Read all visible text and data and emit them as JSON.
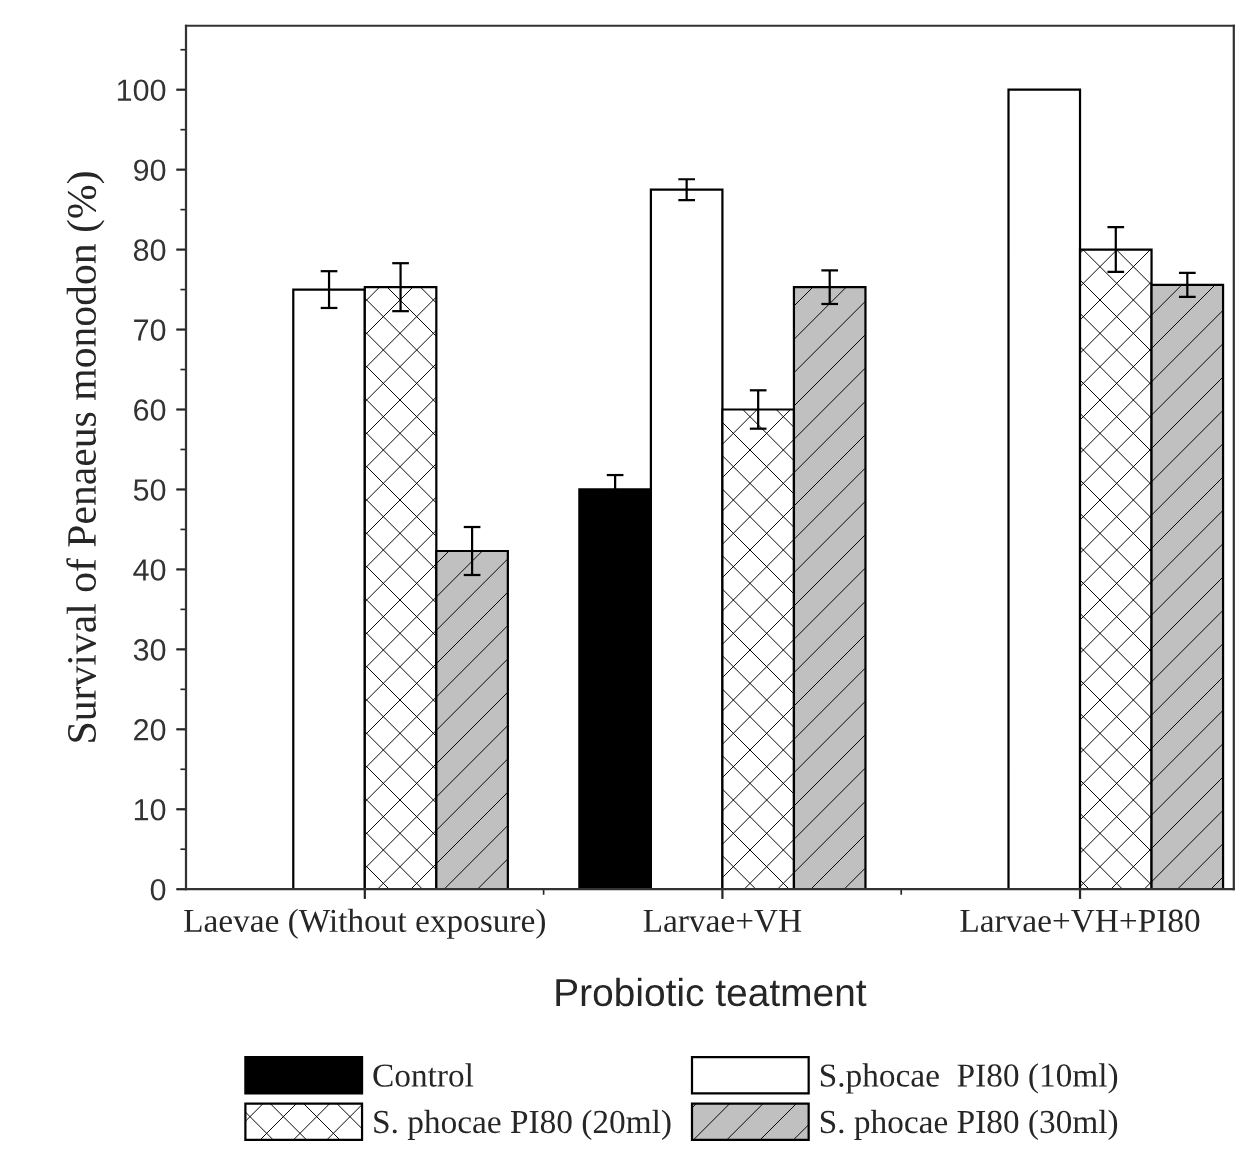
{
  "chart_data": {
    "type": "bar",
    "xlabel": "Probiotic teatment",
    "ylabel": "Survival of Penaeus monodon (%)",
    "categories": [
      "Laevae (Without exposure)",
      "Larvae+VH",
      "Larvae+VH+PI80"
    ],
    "series": [
      {
        "name": "Control",
        "color": "#000000",
        "values": [
          null,
          50,
          null
        ],
        "errors": [
          null,
          1.8,
          null
        ]
      },
      {
        "name": "S.phocae  PI80 (10ml)",
        "color": "#ffffff",
        "values": [
          75,
          87.5,
          100
        ],
        "errors": [
          2.3,
          1.3,
          null
        ]
      },
      {
        "name": "S. phocae PI80 (20ml)",
        "color": "#ffffff",
        "values": [
          75.3,
          60,
          80
        ],
        "errors": [
          3,
          2.4,
          2.8
        ]
      },
      {
        "name": "S. phocae PI80 (30ml)",
        "color": "#c0c0c0",
        "values": [
          42.3,
          75.3,
          75.6
        ],
        "errors": [
          3,
          2.1,
          1.5
        ]
      }
    ],
    "ylim": [
      0,
      108
    ],
    "yticks": [
      0,
      10,
      20,
      30,
      40,
      50,
      60,
      70,
      80,
      90,
      100
    ],
    "grid": false,
    "legend": "bottom"
  }
}
